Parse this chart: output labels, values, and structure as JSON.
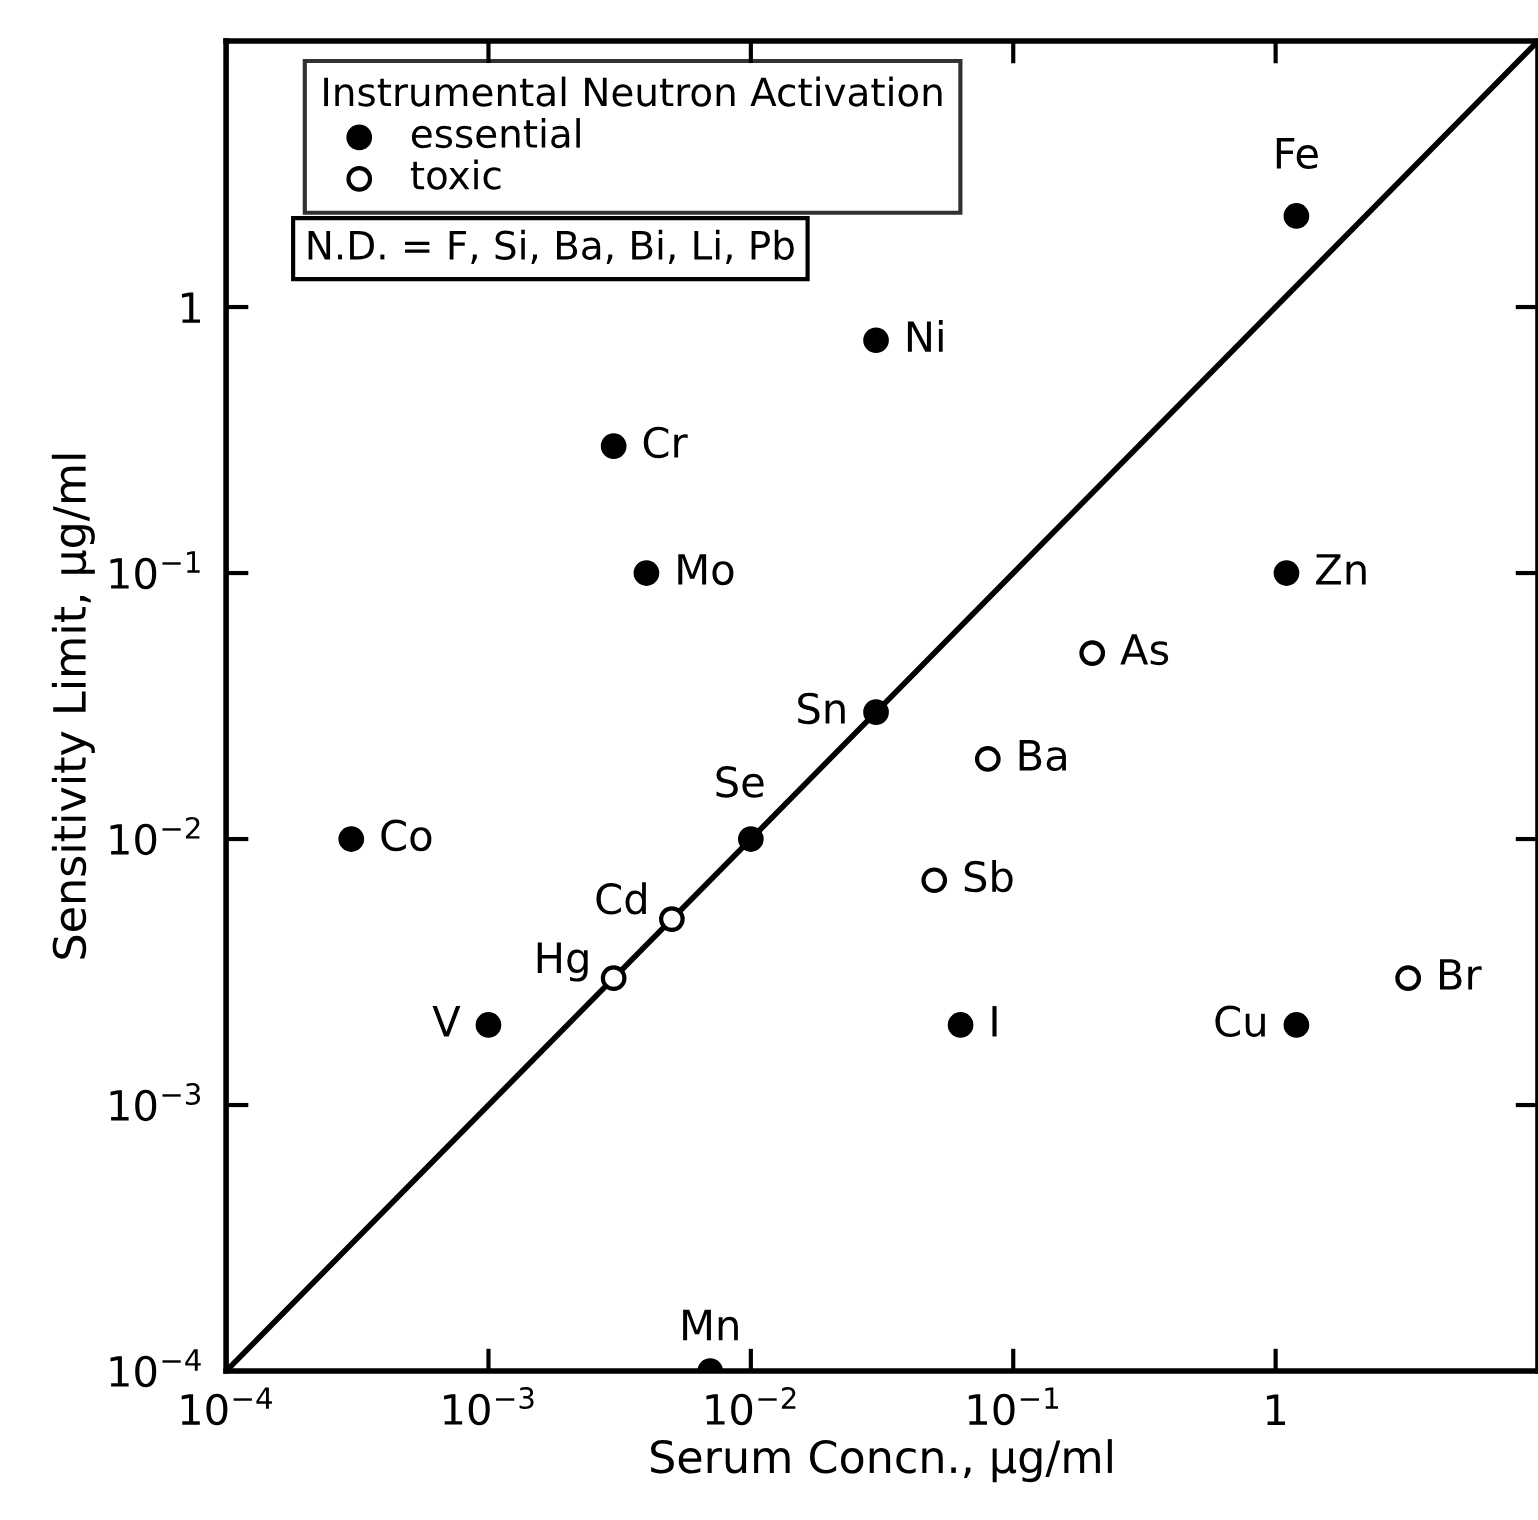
{
  "chart_data": {
    "type": "scatter",
    "xlabel": "Serum Concn., μg/ml",
    "ylabel": "Sensitivity Limit, μg/ml",
    "legend_title": "Instrumental Neutron Activation",
    "legend": "top left",
    "grid": false,
    "marker": "circle",
    "log": "xy",
    "xlim": [
      0.0001,
      10
    ],
    "ylim": [
      0.0001,
      10
    ],
    "xticks": [
      {
        "value": 0.0001,
        "label": "10$^{−4}$"
      },
      {
        "value": 0.001,
        "label": "10$^{−3}$"
      },
      {
        "value": 0.01,
        "label": "10$^{−2}$"
      },
      {
        "value": 0.1,
        "label": "10$^{−1}$"
      },
      1
    ],
    "yticks": [
      {
        "value": 0.0001,
        "label": "10$^{−4}$"
      },
      {
        "value": 0.001,
        "label": "10$^{−3}$"
      },
      {
        "value": 0.01,
        "label": "10$^{−2}$"
      },
      {
        "value": 0.1,
        "label": "10$^{−1}$"
      },
      1
    ],
    "series": [
      {
        "name": "essential",
        "color": "#000000",
        "x": [
          1.2,
          0.03,
          0.003,
          0.004,
          1.1,
          0.03,
          0.0003,
          0.01,
          0.001,
          0.063,
          1.2,
          0.007
        ],
        "values": [
          2.2,
          0.75,
          0.3,
          0.1,
          0.1,
          0.03,
          0.01,
          0.01,
          0.002,
          0.002,
          0.002,
          0.0001
        ]
      },
      {
        "name": "toxic",
        "color": "#ffffff",
        "x": [
          0.2,
          0.08,
          0.05,
          0.005,
          0.003,
          3.2
        ],
        "values": [
          0.05,
          0.02,
          0.007,
          0.005,
          0.003,
          0.003
        ]
      },
      {
        "type": "line",
        "color": "#000000",
        "marker": "none",
        "x": [
          0.0001,
          10
        ],
        "values": [
          0.0001,
          10
        ]
      }
    ],
    "annotations": [
      {
        "text": "Fe",
        "x": 1.2,
        "y": 2.2
      },
      {
        "text": "Ni",
        "x": 0.03,
        "y": 0.75
      },
      {
        "text": "Cr",
        "x": 0.003,
        "y": 0.3
      },
      {
        "text": "Mo",
        "x": 0.004,
        "y": 0.1
      },
      {
        "text": "Zn",
        "x": 1.1,
        "y": 0.1
      },
      {
        "text": "Sn",
        "x": 0.03,
        "y": 0.03
      },
      {
        "text": "Co",
        "x": 0.0003,
        "y": 0.01
      },
      {
        "text": "Se",
        "x": 0.01,
        "y": 0.01
      },
      {
        "text": "V",
        "x": 0.001,
        "y": 0.002
      },
      {
        "text": "I",
        "x": 0.063,
        "y": 0.002
      },
      {
        "text": "Cu",
        "x": 1.2,
        "y": 0.002
      },
      {
        "text": "Mn",
        "x": 0.007,
        "y": 0.0001
      },
      {
        "text": "As",
        "x": 0.2,
        "y": 0.05
      },
      {
        "text": "Ba",
        "x": 0.08,
        "y": 0.02
      },
      {
        "text": "Sb",
        "x": 0.05,
        "y": 0.007
      },
      {
        "text": "Cd",
        "x": 0.005,
        "y": 0.005
      },
      {
        "text": "Hg",
        "x": 0.003,
        "y": 0.003
      },
      {
        "text": "Br",
        "x": 3.2,
        "y": 0.003
      },
      "N.D. = F, Si, Ba, Bi, Li, Pb"
    ]
  }
}
